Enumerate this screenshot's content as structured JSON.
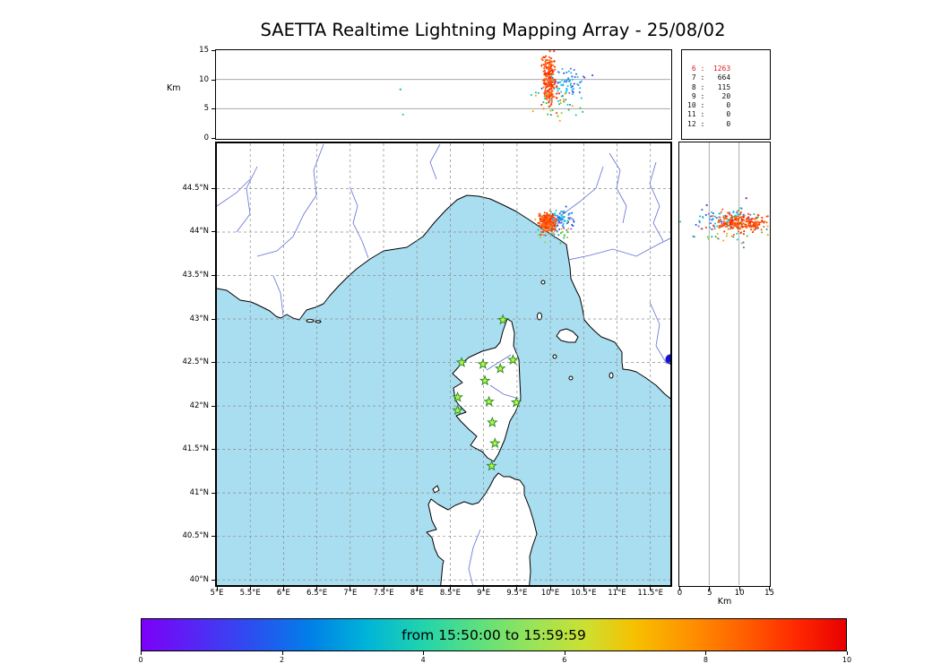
{
  "title": "SAETTA Realtime Lightning Mapping Array - 25/08/02",
  "colors": {
    "sea": "#a9def0",
    "land": "#ffffff",
    "coast": "#000000",
    "river": "#5f6fd8",
    "grid_map": "#8a8a8a",
    "grid_panel": "#9a9a9a",
    "star_fill": "#b8f542",
    "star_stroke": "#2e8b2e",
    "lake": "#1414cc",
    "count_highlight": "#e02020",
    "count_normal": "#101010"
  },
  "axes": {
    "lon": {
      "min": 5,
      "max": 11.8,
      "ticks": [
        5,
        5.5,
        6,
        6.5,
        7,
        7.5,
        8,
        8.5,
        9,
        9.5,
        10,
        10.5,
        11,
        11.5
      ],
      "labels": [
        "5°E",
        "5.5°E",
        "6°E",
        "6.5°E",
        "7°E",
        "7.5°E",
        "8°E",
        "8.5°E",
        "9°E",
        "9.5°E",
        "10°E",
        "10.5°E",
        "11°E",
        "11.5°E"
      ]
    },
    "lat": {
      "min": 39.94,
      "max": 45.02,
      "ticks": [
        44.5,
        44,
        43.5,
        43,
        42.5,
        42,
        41.5,
        41,
        40.5,
        40
      ],
      "labels": [
        "44.5°N",
        "44°N",
        "43.5°N",
        "43°N",
        "42.5°N",
        "42°N",
        "41.5°N",
        "41°N",
        "40.5°N",
        "40°N"
      ]
    },
    "alt": {
      "min": 0,
      "max": 15,
      "ticks": [
        0,
        5,
        10,
        15
      ],
      "labels": [
        "0",
        "5",
        "10",
        "15"
      ],
      "grid": [
        5,
        10
      ],
      "unit": "Km"
    }
  },
  "colorbar": {
    "label": "from 15:50:00 to 15:59:59",
    "tick_values": [
      0,
      2,
      4,
      6,
      8,
      10
    ],
    "tick_labels": [
      "0",
      "2",
      "4",
      "6",
      "8",
      "10"
    ],
    "range": [
      0,
      10
    ],
    "gradient": [
      "#7c00f8 0%",
      "#5428f4 8%",
      "#2a50f0 16%",
      "#0080e8 24%",
      "#00b4d8 32%",
      "#22d4ac 40%",
      "#5ee07e 48%",
      "#9ce455 56%",
      "#cce032 63%",
      "#f6c000 70%",
      "#ff9000 78%",
      "#ff5c00 86%",
      "#ff2800 93%",
      "#e80000 100%"
    ]
  },
  "chart_data": {
    "type": "composite_lma_display",
    "palettes": {
      "warm": [
        "#ff2a00",
        "#ff4500",
        "#ff6000",
        "#ff7518",
        "#f03000",
        "#ff5a28"
      ],
      "cool": [
        "#2f4fe0",
        "#4169e1",
        "#00bfff",
        "#00ced1",
        "#7b68ee",
        "#38b6c8"
      ],
      "mixed": [
        "#20b2aa",
        "#32cd32",
        "#00ced1",
        "#9acd32",
        "#ffa500",
        "#4682b4"
      ]
    },
    "alt_lon_panel": {
      "type": "scatter",
      "x": "longitude_deg_E",
      "y": "altitude_km",
      "xlim": [
        5,
        11.8
      ],
      "ylim": [
        0,
        15
      ],
      "yticks": [
        0,
        5,
        10,
        15
      ],
      "clusters": [
        {
          "palette": "cool",
          "n": 80,
          "cx": 10.22,
          "cy": 9.3,
          "sx": 0.14,
          "sy": 1.1
        },
        {
          "palette": "mixed",
          "n": 40,
          "cx": 10.08,
          "cy": 5.8,
          "sx": 0.14,
          "sy": 1.5
        },
        {
          "palette": "warm",
          "n": 170,
          "cx": 9.98,
          "cy": 11.0,
          "sx": 0.05,
          "sy": 1.7
        },
        {
          "palette": "warm",
          "n": 70,
          "cx": 10.0,
          "cy": 7.5,
          "sx": 0.06,
          "sy": 1.4
        }
      ],
      "strays": [
        {
          "x": 7.76,
          "y": 8.3,
          "c": "#00ced1"
        },
        {
          "x": 7.8,
          "y": 4.0,
          "c": "#48d1cc"
        }
      ]
    },
    "map_panel": {
      "type": "scatter",
      "x": "longitude_deg_E",
      "y": "latitude_deg_N",
      "xlim": [
        5,
        11.8
      ],
      "ylim": [
        39.94,
        45.02
      ],
      "clusters": [
        {
          "palette": "cool",
          "n": 85,
          "cx": 10.15,
          "cy": 44.14,
          "sx": 0.11,
          "sy": 0.055
        },
        {
          "palette": "mixed",
          "n": 40,
          "cx": 10.05,
          "cy": 44.03,
          "sx": 0.15,
          "sy": 0.07
        },
        {
          "palette": "warm",
          "n": 240,
          "cx": 9.95,
          "cy": 44.11,
          "sx": 0.055,
          "sy": 0.05
        }
      ],
      "strays": [],
      "stations": [
        [
          9.29,
          42.99
        ],
        [
          8.67,
          42.5
        ],
        [
          8.99,
          42.48
        ],
        [
          9.44,
          42.53
        ],
        [
          9.25,
          42.43
        ],
        [
          9.02,
          42.29
        ],
        [
          8.61,
          42.1
        ],
        [
          9.08,
          42.05
        ],
        [
          9.49,
          42.04
        ],
        [
          8.61,
          41.95
        ],
        [
          9.13,
          41.81
        ],
        [
          9.17,
          41.57
        ],
        [
          9.12,
          41.31
        ]
      ]
    },
    "alt_lat_panel": {
      "type": "scatter",
      "x": "altitude_km",
      "y": "latitude_deg_N",
      "xlim": [
        0,
        15
      ],
      "ylim": [
        39.94,
        45.02
      ],
      "xticks": [
        0,
        5,
        10,
        15
      ],
      "clusters": [
        {
          "palette": "cool",
          "n": 85,
          "cx": 7.5,
          "cy": 44.14,
          "sx": 2.9,
          "sy": 0.06
        },
        {
          "palette": "mixed",
          "n": 40,
          "cx": 9.5,
          "cy": 44.02,
          "sx": 3.0,
          "sy": 0.08
        },
        {
          "palette": "warm",
          "n": 230,
          "cx": 10.3,
          "cy": 44.1,
          "sx": 2.1,
          "sy": 0.05
        }
      ],
      "strays": [
        {
          "x": 11.2,
          "y": 44.38,
          "c": "#9932cc"
        },
        {
          "x": 4.6,
          "y": 44.3,
          "c": "#6a5acd"
        }
      ]
    },
    "source_counts": {
      "type": "table",
      "columns": [
        "level",
        "count"
      ],
      "rows": [
        [
          6,
          1263
        ],
        [
          7,
          664
        ],
        [
          8,
          115
        ],
        [
          9,
          20
        ],
        [
          10,
          0
        ],
        [
          11,
          0
        ],
        [
          12,
          0
        ]
      ],
      "highlight_level": 6
    },
    "colorbar": {
      "type": "colorbar",
      "label": "from 15:50:00 to 15:59:59",
      "ticks": [
        0,
        2,
        4,
        6,
        8,
        10
      ],
      "range": [
        0,
        10
      ]
    }
  }
}
